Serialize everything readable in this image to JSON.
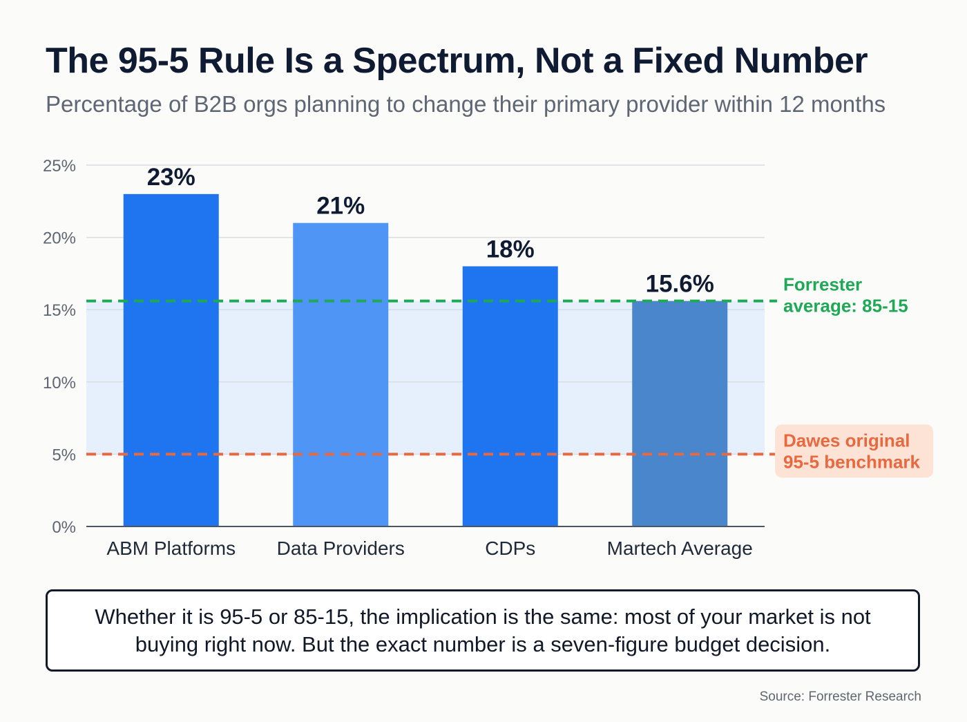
{
  "title": "The 95-5 Rule Is a Spectrum, Not a Fixed Number",
  "subtitle": "Percentage of B2B orgs planning to change their primary provider within 12 months",
  "chart_data": {
    "type": "bar",
    "title": "The 95-5 Rule Is a Spectrum, Not a Fixed Number",
    "subtitle": "Percentage of B2B orgs planning to change their primary provider within 12 months",
    "categories": [
      "ABM Platforms",
      "Data Providers",
      "CDPs",
      "Martech Average"
    ],
    "values": [
      23,
      21,
      18,
      15.6
    ],
    "value_labels": [
      "23%",
      "21%",
      "18%",
      "15.6%"
    ],
    "bar_colors": [
      "#1f74ef",
      "#4e95f6",
      "#1f74ef",
      "#4a86cc"
    ],
    "ylim": [
      0,
      25
    ],
    "yticks": [
      0,
      5,
      10,
      15,
      20,
      25
    ],
    "ytick_labels": [
      "0%",
      "5%",
      "10%",
      "15%",
      "20%",
      "25%"
    ],
    "xlabel": "",
    "ylabel": "",
    "grid": true,
    "shaded_band": {
      "from": 5,
      "to": 15.6,
      "color": "#e6f0fd"
    },
    "reference_lines": [
      {
        "value": 15.6,
        "label_lines": [
          "Forrester",
          "average: 85-15"
        ],
        "color": "#1fa855",
        "label_bg": ""
      },
      {
        "value": 5,
        "label_lines": [
          "Dawes original",
          "95-5 benchmark"
        ],
        "color": "#e8683f",
        "label_bg": "#fde3d6"
      }
    ]
  },
  "callout": "Whether it is 95-5 or 85-15, the implication is the same: most of your market is not buying right now. But the exact number is a seven-figure budget decision.",
  "source": "Source: Forrester Research"
}
